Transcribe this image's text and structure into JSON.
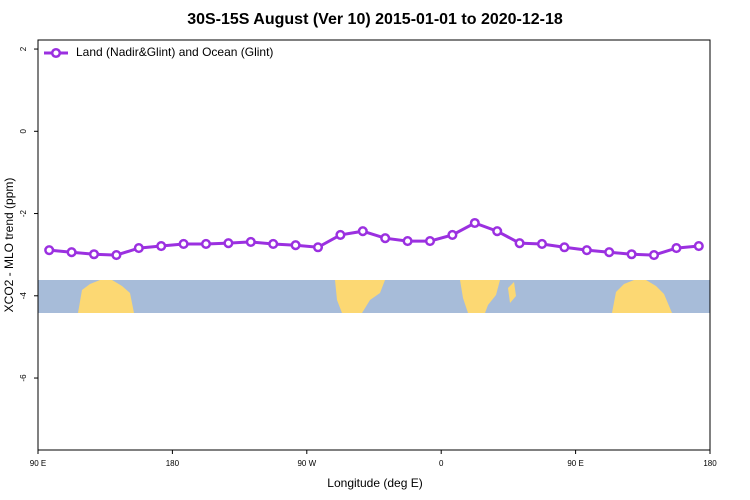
{
  "chart_data": {
    "type": "line",
    "title": "30S-15S August (Ver 10)   2015-01-01 to 2020-12-18",
    "x_label": "Longitude (deg E)",
    "y_label": "XCO2 - MLO trend (ppm)",
    "x": [
      97.5,
      112.5,
      127.5,
      142.5,
      157.5,
      172.5,
      187.5,
      202.5,
      217.5,
      232.5,
      247.5,
      262.5,
      277.5,
      292.5,
      307.5,
      322.5,
      337.5,
      352.5,
      367.5,
      382.5,
      397.5,
      412.5,
      427.5,
      442.5,
      457.5,
      472.5,
      487.5,
      502.5,
      517.5,
      532.5
    ],
    "series": [
      {
        "name": "Land (Nadir&Glint) and Ocean (Glint)",
        "color": "#9b30e0",
        "values": [
          -2.89,
          -2.94,
          -2.99,
          -3.01,
          -2.84,
          -2.79,
          -2.74,
          -2.74,
          -2.72,
          -2.69,
          -2.74,
          -2.77,
          -2.82,
          -2.52,
          -2.43,
          -2.6,
          -2.67,
          -2.67,
          -2.52,
          -2.23,
          -2.43,
          -2.72,
          -2.74,
          -2.82,
          -2.89,
          -2.94,
          -2.99,
          -3.01,
          -2.84,
          -2.79
        ]
      }
    ],
    "xlim": [
      90,
      540
    ],
    "xticks": [
      {
        "value": 90,
        "label": "90 E"
      },
      180,
      {
        "value": 270,
        "label": "90 W"
      },
      {
        "value": 360,
        "label": "0"
      },
      {
        "value": 450,
        "label": "90 E"
      },
      {
        "value": 540,
        "label": "180"
      }
    ],
    "ylim": [
      -7.75,
      2.22
    ],
    "yticks": [
      2,
      0,
      -2,
      -4,
      -6
    ],
    "legend": "top-left"
  }
}
